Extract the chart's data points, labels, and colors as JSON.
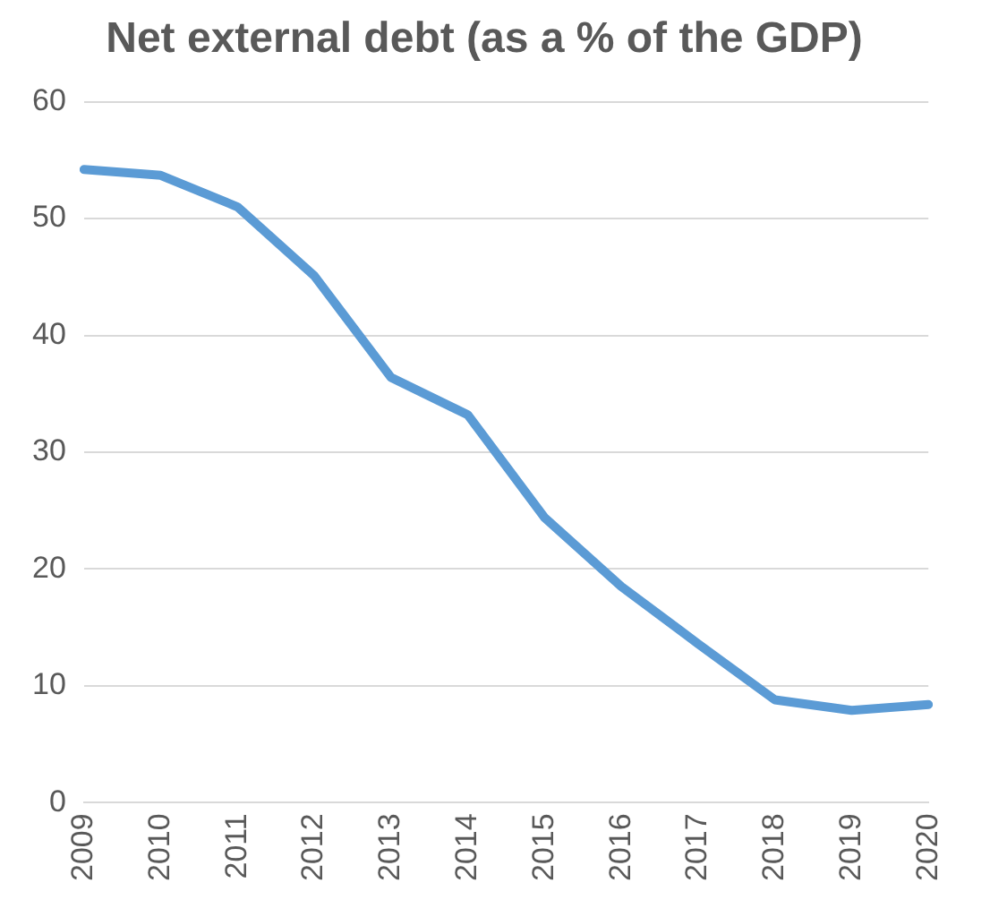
{
  "chart_data": {
    "type": "line",
    "title": "Net external debt (as a % of the GDP)",
    "categories": [
      "2009",
      "2010",
      "2011",
      "2012",
      "2013",
      "2014",
      "2015",
      "2016",
      "2017",
      "2018",
      "2019",
      "2020"
    ],
    "series": [
      {
        "color": "#5b9bd5",
        "values": [
          54.2,
          53.7,
          51.0,
          45.1,
          36.4,
          33.2,
          24.4,
          18.5,
          13.6,
          8.8,
          7.9,
          8.4
        ]
      }
    ],
    "ylim": [
      0,
      60
    ],
    "yticks": [
      0,
      10,
      20,
      30,
      40,
      50,
      60
    ],
    "grid": "y",
    "legend": false,
    "marker": "none",
    "line_style": "solid"
  }
}
